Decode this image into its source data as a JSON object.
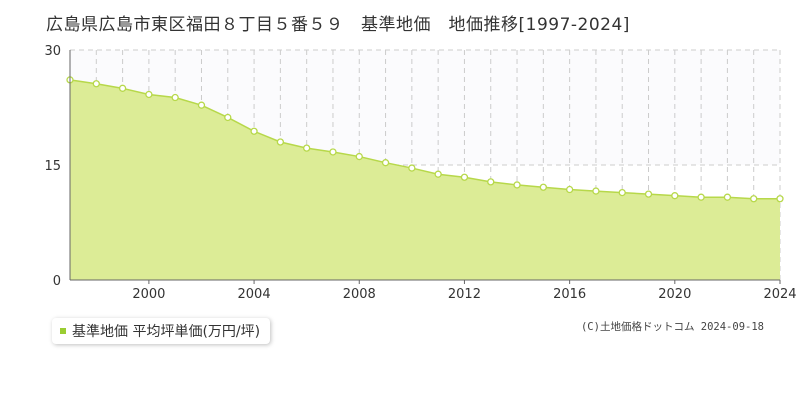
{
  "title": "広島県広島市東区福田８丁目５番５９　基準地価　地価推移[1997-2024]",
  "legend": {
    "label": "基準地価 平均坪単価(万円/坪)"
  },
  "copyright": "(C)土地価格ドットコム 2024-09-18",
  "colors": {
    "fill": "#dcec96",
    "line": "#b7d84a",
    "marker_stroke": "#b7d84a",
    "legend_swatch": "#9acd32"
  },
  "chart_data": {
    "type": "area",
    "title": "",
    "xlabel": "",
    "ylabel": "",
    "x": [
      1997,
      1998,
      1999,
      2000,
      2001,
      2002,
      2003,
      2004,
      2005,
      2006,
      2007,
      2008,
      2009,
      2010,
      2011,
      2012,
      2013,
      2014,
      2015,
      2016,
      2017,
      2018,
      2019,
      2020,
      2021,
      2022,
      2023,
      2024
    ],
    "series": [
      {
        "name": "基準地価 平均坪単価(万円/坪)",
        "values": [
          26.1,
          25.6,
          25.0,
          24.2,
          23.8,
          22.8,
          21.2,
          19.4,
          18.0,
          17.2,
          16.7,
          16.1,
          15.3,
          14.6,
          13.8,
          13.4,
          12.8,
          12.4,
          12.1,
          11.8,
          11.6,
          11.4,
          11.2,
          11.0,
          10.8,
          10.8,
          10.6,
          10.6
        ]
      }
    ],
    "xlim": [
      1997,
      2024
    ],
    "ylim": [
      0,
      30
    ],
    "yticks": [
      0,
      15,
      30
    ],
    "xtick_labels": [
      "2000",
      "2004",
      "2008",
      "2012",
      "2016",
      "2020",
      "2024"
    ],
    "grid": true,
    "legend_position": "bottom-left"
  }
}
